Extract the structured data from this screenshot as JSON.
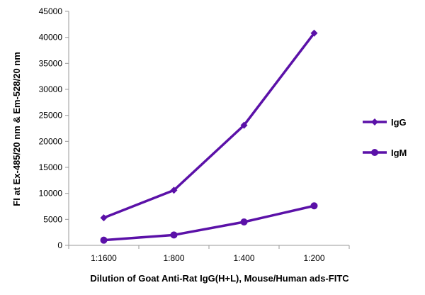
{
  "chart_data": {
    "type": "line",
    "xlabel": "Dilution of Goat Anti-Rat IgG(H+L), Mouse/Human ads-FITC",
    "ylabel": "FI at Ex-485/20 nm & Em-528/20 nm",
    "categories": [
      "1:1600",
      "1:800",
      "1:400",
      "1:200"
    ],
    "ylim": [
      0,
      45000
    ],
    "yticks": [
      0,
      5000,
      10000,
      15000,
      20000,
      25000,
      30000,
      35000,
      40000,
      45000
    ],
    "grid": false,
    "legend": "right",
    "series": [
      {
        "name": "IgG",
        "marker": "diamond",
        "color": "#5b11a8",
        "values": [
          5300,
          10600,
          23100,
          40800
        ]
      },
      {
        "name": "IgM",
        "marker": "circle",
        "color": "#5b11a8",
        "values": [
          1000,
          2000,
          4500,
          7600
        ]
      }
    ]
  }
}
